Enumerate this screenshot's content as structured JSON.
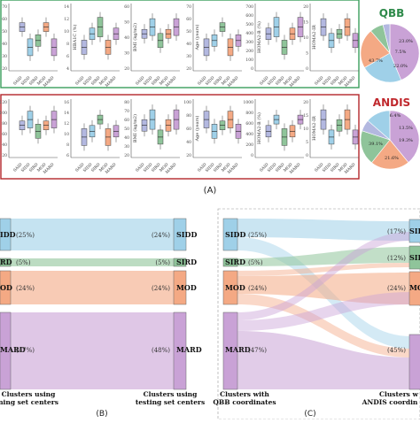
{
  "panel_a": {
    "label": "(A)",
    "qbb": {
      "title": "QBB",
      "plots": [
        {
          "ylabel": "",
          "ticks": [
            "70",
            "60",
            "50",
            "40",
            "30",
            "20"
          ]
        },
        {
          "ylabel": "HBA1C (%)",
          "ticks": [
            "14",
            "12",
            "10",
            "8",
            "6",
            "4"
          ]
        },
        {
          "ylabel": "BMI (kg/m2)",
          "ticks": [
            "60",
            "50",
            "40",
            "30",
            "20"
          ]
        },
        {
          "ylabel": "Age (years)",
          "ticks": [
            "70",
            "60",
            "50",
            "40",
            "30",
            "20"
          ]
        },
        {
          "ylabel": "HOMA2-B (%)",
          "ticks": [
            "700",
            "600",
            "500",
            "400",
            "300",
            "200",
            "100",
            "0"
          ]
        },
        {
          "ylabel": "HOMA2-IR",
          "ticks": [
            "20",
            "15",
            "10",
            "5",
            "0"
          ]
        }
      ],
      "pie": {
        "labels": [
          "43.7%",
          "23.0%",
          "22.0%",
          "7.5%"
        ]
      }
    },
    "andis": {
      "title": "ANDIS",
      "plots": [
        {
          "ylabel": "",
          "ticks": [
            "120",
            "100",
            "80",
            "60",
            "40",
            "20"
          ]
        },
        {
          "ylabel": "",
          "ticks": [
            "16",
            "14",
            "12",
            "10",
            "8",
            "6"
          ]
        },
        {
          "ylabel": "BMI (kg/m2)",
          "ticks": [
            "80",
            "70",
            "60",
            "50",
            "40",
            "30",
            "20"
          ]
        },
        {
          "ylabel": "Age (years)",
          "ticks": [
            "100",
            "80",
            "60",
            "40",
            "20"
          ]
        },
        {
          "ylabel": "HOMA2-B (%)",
          "ticks": [
            "1000",
            "800",
            "600",
            "400",
            "200",
            "0"
          ]
        },
        {
          "ylabel": "HOMA2-IR",
          "ticks": [
            "20",
            "15",
            "10",
            "5",
            "0"
          ]
        }
      ],
      "pie": {
        "labels": [
          "39.1%",
          "21.6%",
          "19.3%",
          "6.4%",
          "13.5%"
        ]
      }
    },
    "categories": [
      "SAID",
      "SIDD",
      "SIRD",
      "MOD",
      "MARD"
    ]
  },
  "panel_b": {
    "label": "(B)",
    "left_nodes": [
      {
        "name": "IDD",
        "pct": "(25%)"
      },
      {
        "name": "RD",
        "pct": "(5%)"
      },
      {
        "name": "OD",
        "pct": "(24%)"
      },
      {
        "name": "MARD",
        "pct": "(47%)"
      }
    ],
    "right_nodes": [
      {
        "name": "SIDD",
        "pct": "(24%)"
      },
      {
        "name": "SIRD",
        "pct": "(5%)"
      },
      {
        "name": "MOD",
        "pct": "(24%)"
      },
      {
        "name": "MARD",
        "pct": "(48%)"
      }
    ],
    "left_caption": [
      "Clusters using",
      "ning set centers"
    ],
    "right_caption": [
      "Clusters using",
      "testing set centers"
    ]
  },
  "panel_c": {
    "label": "(C)",
    "left_nodes": [
      {
        "name": "SIDD",
        "pct": "(25%)"
      },
      {
        "name": "SIRD",
        "pct": "(5%)"
      },
      {
        "name": "MOD",
        "pct": "(24%)"
      },
      {
        "name": "MARD",
        "pct": "(47%)"
      }
    ],
    "right_nodes": [
      {
        "name": "SID",
        "pct": "(17%)"
      },
      {
        "name": "SIR",
        "pct": "(12%)"
      },
      {
        "name": "MO",
        "pct": "(24%)"
      },
      {
        "name": "",
        "pct": "(45%)"
      }
    ],
    "left_caption": [
      "Clusters with",
      "QBB coordinates"
    ],
    "right_caption": [
      "Clusters w",
      "ANDIS coordin"
    ]
  },
  "colors": {
    "said": "#b3b8e0",
    "sidd": "#9fd0e8",
    "sird": "#8fc49a",
    "mod": "#f4a984",
    "mard": "#c9a2d6",
    "qbb_border": "#3a9e5c",
    "andis_border": "#b3262b",
    "qbb_title": "#2e8a4a",
    "andis_title": "#c0282d"
  }
}
